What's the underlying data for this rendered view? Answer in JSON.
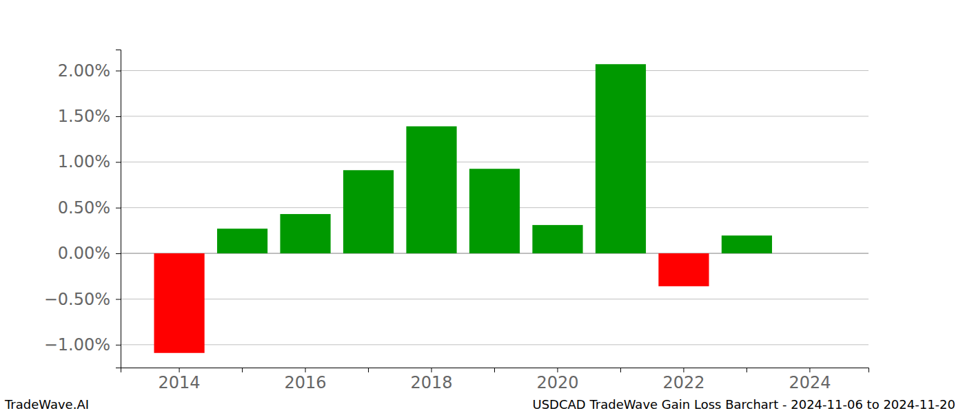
{
  "chart_data": {
    "type": "bar",
    "title": "USDCAD TradeWave Gain Loss Barchart - 2024-11-06 to 2024-11-20",
    "annotations": [
      "TradeWave.AI"
    ],
    "categories": [
      "2014",
      null,
      "2016",
      null,
      "2018",
      null,
      "2020",
      null,
      "2022",
      null,
      "2024"
    ],
    "values": [
      -1.09,
      0.27,
      0.43,
      0.91,
      1.39,
      0.925,
      0.31,
      2.07,
      -0.36,
      0.195,
      null
    ],
    "colors": [
      "#ff0000",
      "#009900",
      "#009900",
      "#009900",
      "#009900",
      "#009900",
      "#009900",
      "#009900",
      "#ff0000",
      "#009900"
    ],
    "ylim": [
      -1.25,
      2.23
    ],
    "yticks": [
      {
        "value": -1,
        "label": "−1.00%"
      },
      {
        "value": -0.5,
        "label": "−0.50%"
      },
      {
        "value": 0,
        "label": "0.00%"
      },
      {
        "value": 0.5,
        "label": "0.50%"
      },
      {
        "value": 1,
        "label": "1.00%"
      },
      {
        "value": 1.5,
        "label": "1.50%"
      },
      {
        "value": 2,
        "label": "2.00%"
      }
    ],
    "grid": true
  }
}
